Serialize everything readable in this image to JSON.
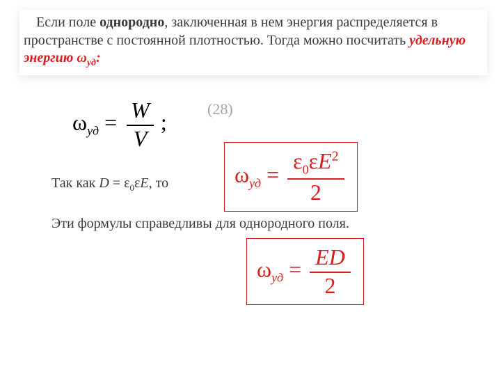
{
  "colors": {
    "text_gray": "#3a3a3a",
    "accent_red": "#d81e1e",
    "eqnum_gray": "#a4a4a4",
    "shadow": "rgba(0,0,0,0.10)",
    "background": "#ffffff"
  },
  "typography": {
    "body_fontsize": 20,
    "formula_fontsize": 32,
    "sub_fontsize": 18,
    "font_family": "Times New Roman, serif"
  },
  "intro": {
    "pre": "Если поле ",
    "bold": "однородно",
    "mid": ", заключенная в нем энергия распределяется в пространстве с постоянной плотностью. Тогда можно посчитать ",
    "red": "удельную энергию ω",
    "red_sub": "уд",
    "red_tail": ":"
  },
  "eq28": {
    "omega": "ω",
    "sub": "уд",
    "eq": " = ",
    "num": "W",
    "den": "V",
    "semi": ";",
    "number": "(28)"
  },
  "line_tak": {
    "pre": "Так как ",
    "D": "D",
    "eq": " = ",
    "eps": "ε",
    "zero": "0",
    "eps2": "ε",
    "E": "E",
    "tail": ", то"
  },
  "line_valid": {
    "text": "Эти формулы справедливы для однородного поля."
  },
  "box1": {
    "omega": "ω",
    "sub": "уд",
    "eq": " = ",
    "num_eps": "ε",
    "num_zero": "0",
    "num_eps2": "ε",
    "num_E": "E",
    "num_sup": "2",
    "den": "2"
  },
  "box2": {
    "omega": "ω",
    "sub": "уд",
    "eq": " = ",
    "num_E": "E",
    "num_D": "D",
    "den": "2"
  }
}
